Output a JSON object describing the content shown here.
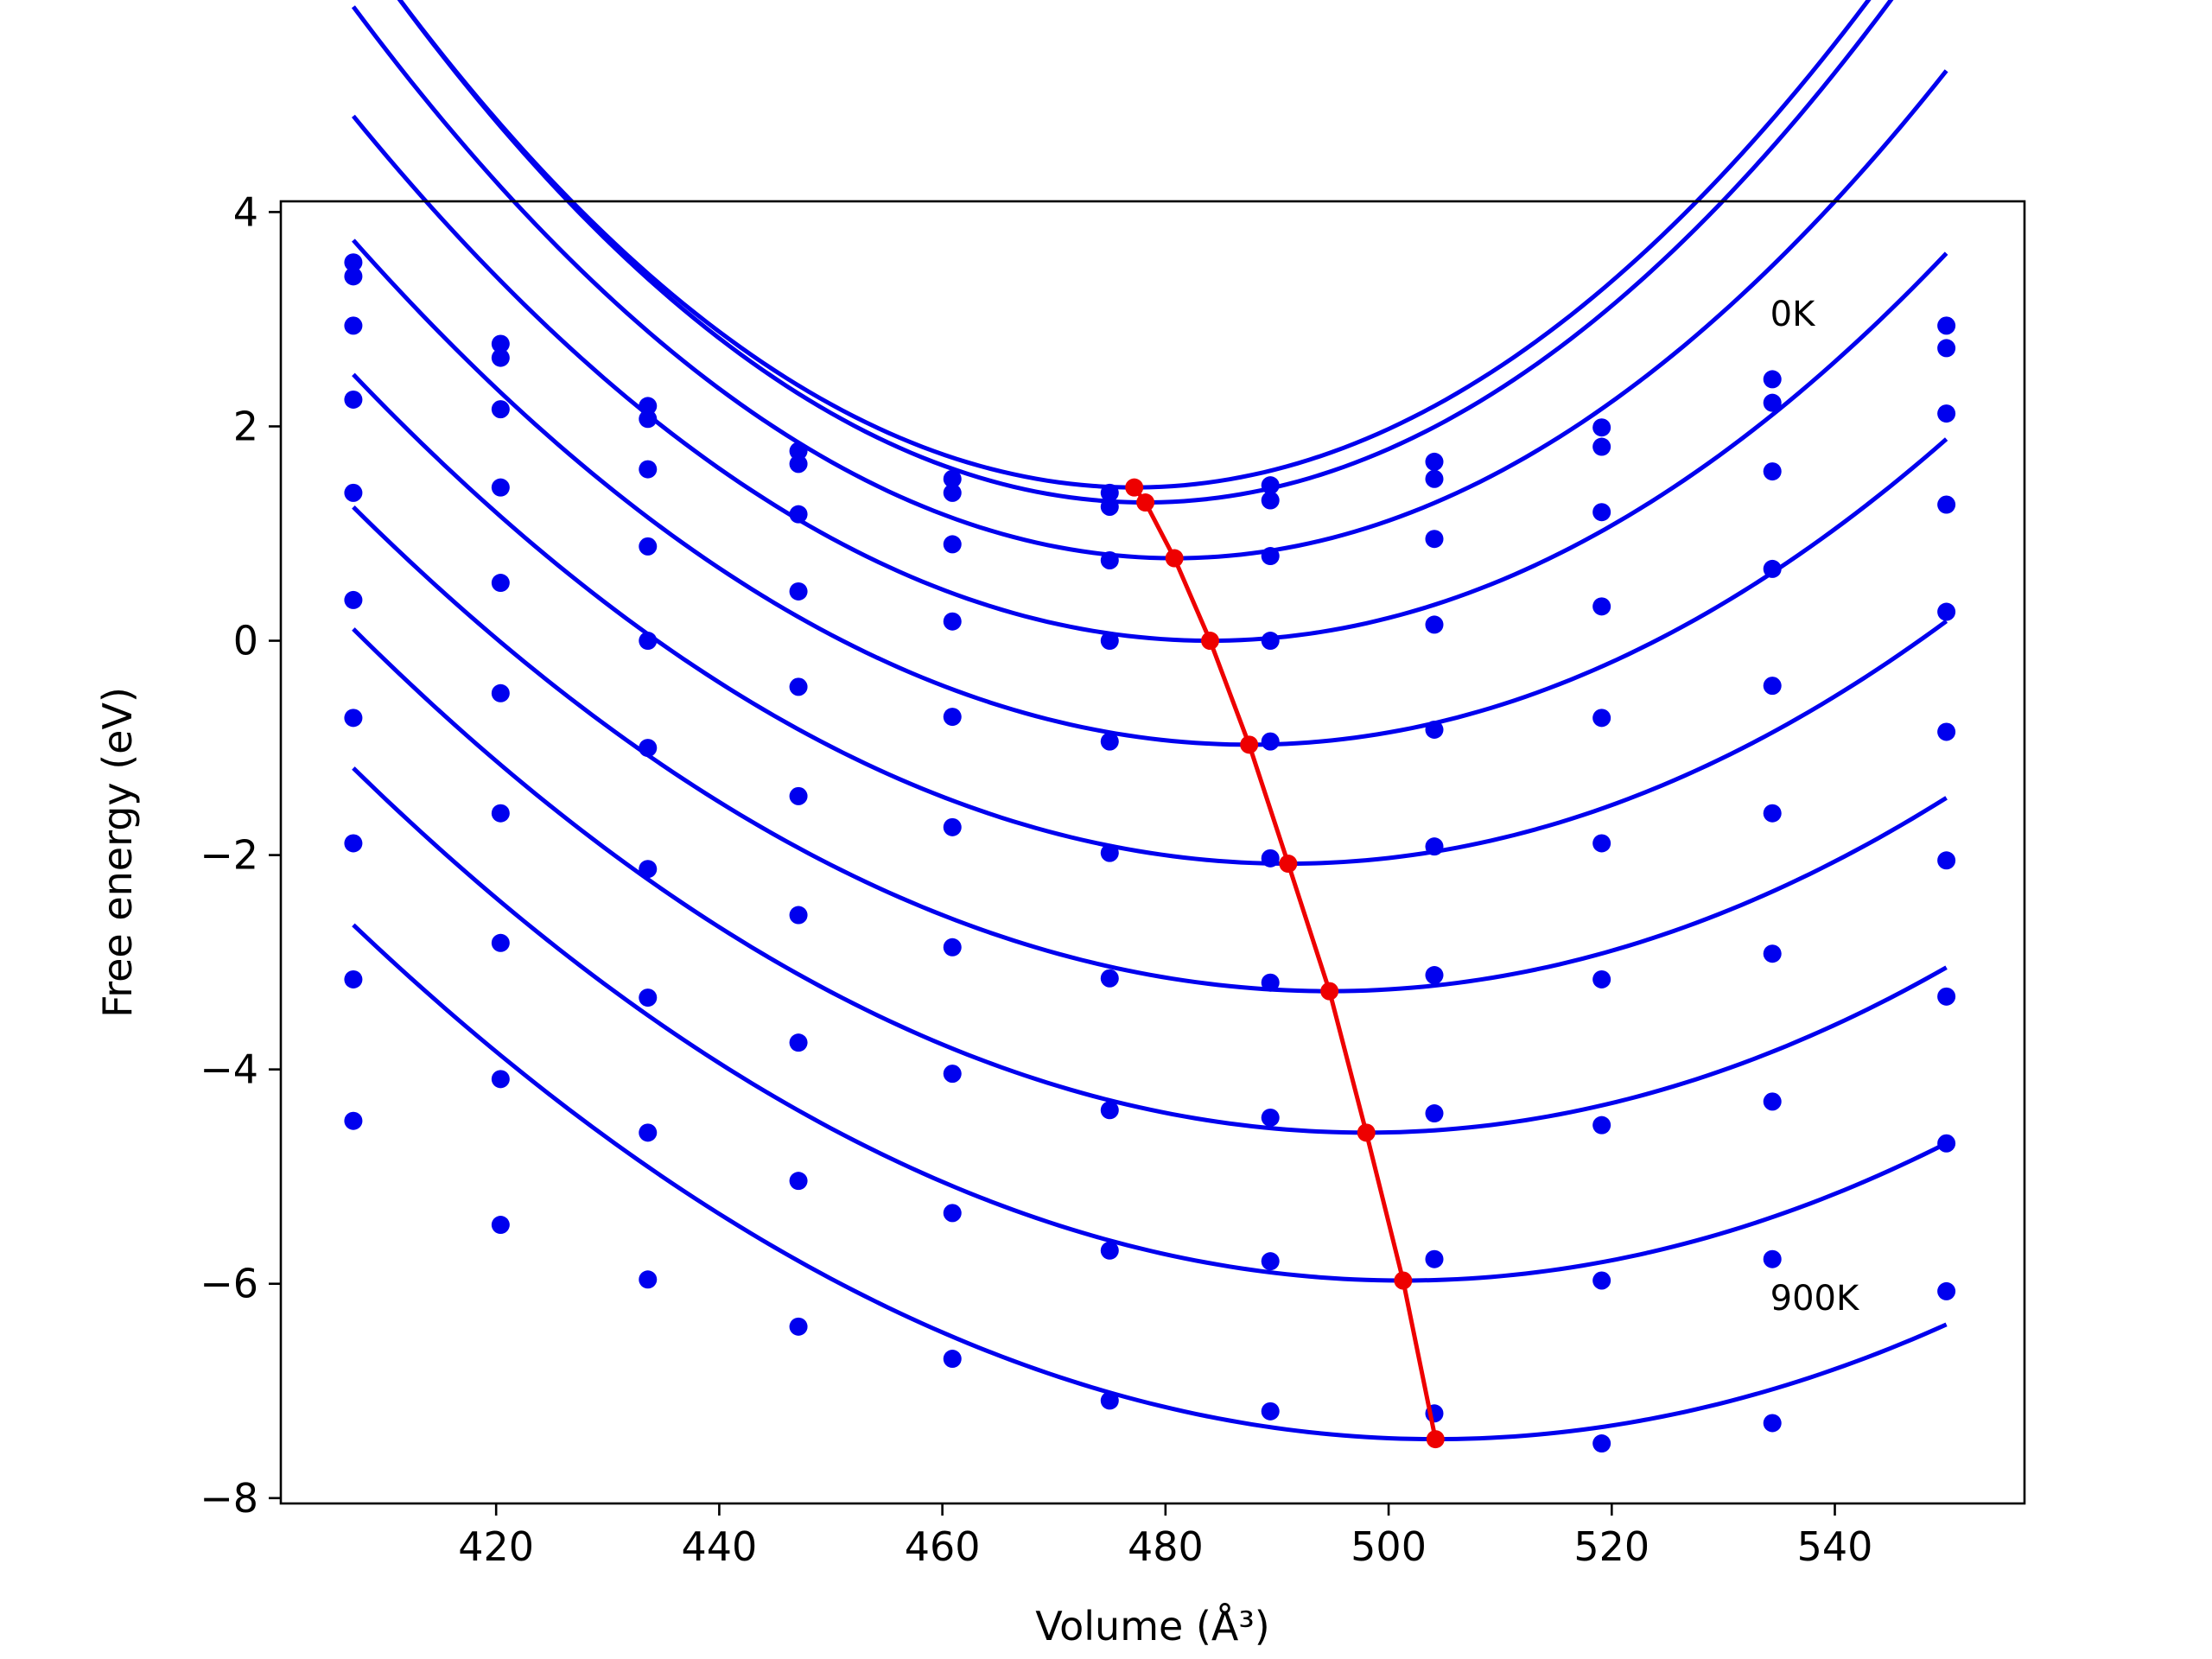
{
  "chart_data": {
    "type": "scatter",
    "title": "",
    "xlabel": "Volume",
    "xlabel_unit": "(Å³)",
    "ylabel": "Free energy (eV)",
    "xlim": [
      400.7,
      557.0
    ],
    "ylim": [
      -8.05,
      4.1
    ],
    "x_ticks": [
      420,
      440,
      460,
      480,
      500,
      520,
      540
    ],
    "y_ticks": [
      -8,
      -6,
      -4,
      -2,
      0,
      2,
      4
    ],
    "y_tick_labels": [
      "−8",
      "−6",
      "−4",
      "−2",
      "0",
      "2",
      "4"
    ],
    "grid": false,
    "legend": "none",
    "colors": {
      "points": "#0000ee",
      "fits": "#0000ee",
      "minimum": "#ee0000",
      "axes": "#000000"
    },
    "x": [
      407.2,
      420.4,
      433.6,
      447.1,
      460.9,
      475.0,
      489.4,
      504.1,
      519.1,
      534.4,
      550.0
    ],
    "series": [
      {
        "values": [
          3.53,
          2.77,
          2.19,
          1.77,
          1.51,
          1.38,
          1.45,
          1.67,
          1.99,
          2.44,
          2.94
        ],
        "fit": [
          0.00105,
          477.2,
          1.43
        ]
      },
      {
        "values": [
          3.4,
          2.64,
          2.07,
          1.65,
          1.38,
          1.25,
          1.31,
          1.51,
          1.81,
          2.22,
          2.73
        ],
        "fit": [
          0.00105,
          478.2,
          1.29
        ]
      },
      {
        "values": [
          2.94,
          2.16,
          1.6,
          1.18,
          0.9,
          0.75,
          0.79,
          0.95,
          1.2,
          1.58,
          2.12
        ],
        "fit": [
          0.00095,
          480.8,
          0.77
        ]
      },
      {
        "values": [
          2.25,
          1.43,
          0.88,
          0.46,
          0.18,
          0.0,
          0.0,
          0.15,
          0.32,
          0.67,
          1.27
        ],
        "fit": [
          0.00083,
          484.0,
          0.0
        ]
      },
      {
        "values": [
          1.38,
          0.54,
          0.0,
          -0.43,
          -0.71,
          -0.94,
          -0.94,
          -0.83,
          -0.72,
          -0.42,
          0.27
        ],
        "fit": [
          0.00073,
          487.5,
          -0.97
        ]
      },
      {
        "values": [
          0.38,
          -0.49,
          -1.0,
          -1.45,
          -1.74,
          -1.98,
          -2.03,
          -1.92,
          -1.89,
          -1.61,
          -0.85
        ],
        "fit": [
          0.00065,
          491.0,
          -2.08
        ]
      },
      {
        "values": [
          -0.72,
          -1.61,
          -2.13,
          -2.56,
          -2.86,
          -3.15,
          -3.19,
          -3.12,
          -3.16,
          -2.92,
          -2.05
        ],
        "fit": [
          0.00059,
          494.7,
          -3.27
        ]
      },
      {
        "values": [
          -1.89,
          -2.82,
          -3.33,
          -3.75,
          -4.04,
          -4.38,
          -4.45,
          -4.41,
          -4.52,
          -4.3,
          -3.32
        ],
        "fit": [
          0.00057,
          498.0,
          -4.59
        ]
      },
      {
        "values": [
          -3.16,
          -4.09,
          -4.59,
          -5.04,
          -5.34,
          -5.69,
          -5.79,
          -5.77,
          -5.97,
          -5.77,
          -4.69
        ],
        "fit": [
          0.00054,
          501.3,
          -5.97
        ]
      },
      {
        "values": [
          -4.48,
          -5.45,
          -5.96,
          -6.4,
          -6.7,
          -7.09,
          -7.19,
          -7.21,
          -7.49,
          -7.3,
          -6.07
        ],
        "fit": [
          0.00051,
          504.2,
          -7.45
        ]
      }
    ],
    "minimum_path": {
      "x": [
        477.2,
        478.2,
        480.8,
        484.0,
        487.5,
        491.0,
        494.7,
        498.0,
        501.3,
        504.2
      ],
      "y": [
        1.43,
        1.29,
        0.77,
        0.0,
        -0.97,
        -2.08,
        -3.27,
        -4.59,
        -5.97,
        -7.45
      ]
    },
    "annotations": [
      {
        "text": "0K",
        "x": 534.2,
        "y": 3.05
      },
      {
        "text": "900K",
        "x": 534.2,
        "y": -6.13
      }
    ]
  }
}
